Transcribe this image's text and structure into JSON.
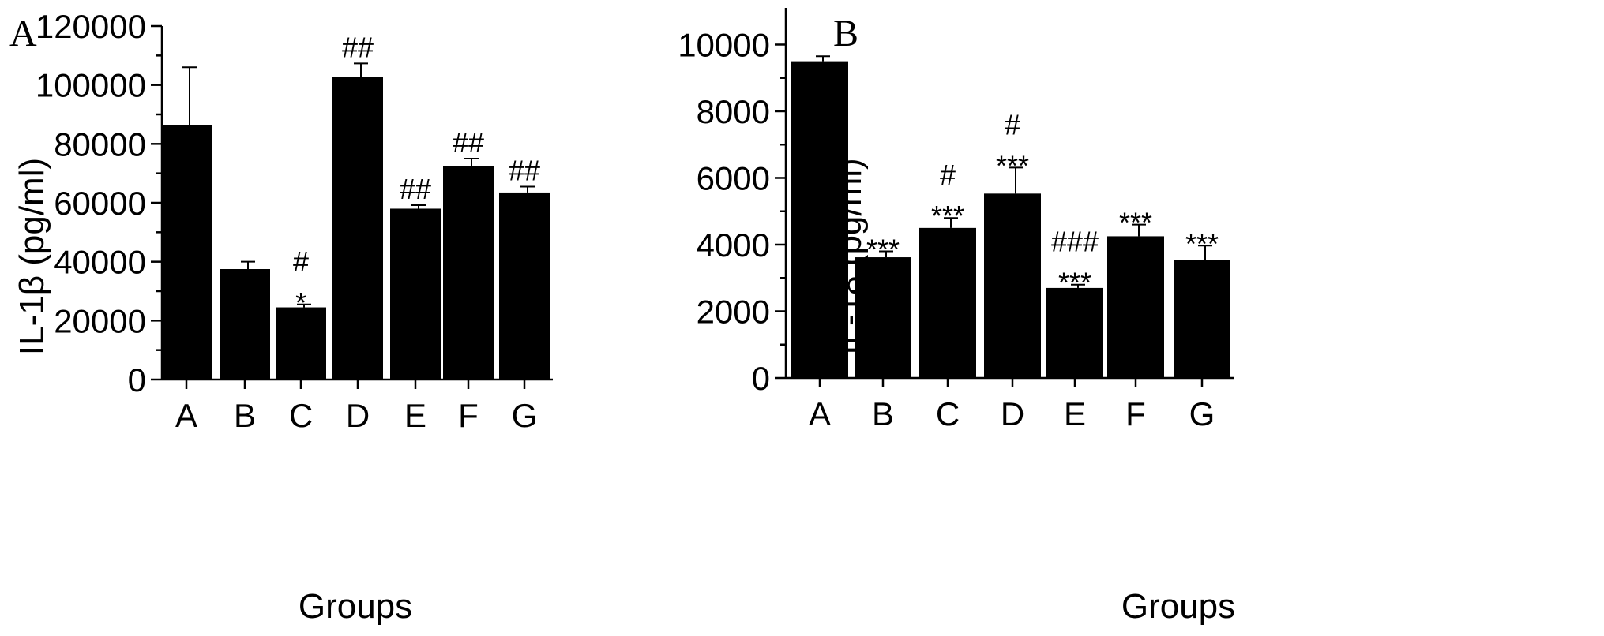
{
  "chart_data": [
    {
      "panel_label": "A",
      "type": "bar",
      "categories": [
        "A",
        "B",
        "C",
        "D",
        "E",
        "F",
        "G"
      ],
      "values": [
        86500,
        37500,
        24500,
        102800,
        58000,
        72500,
        63500
      ],
      "errors": [
        19500,
        2500,
        1000,
        4500,
        1200,
        2500,
        2000
      ],
      "annotations": [
        [],
        [],
        [
          "#",
          "*"
        ],
        [
          "##"
        ],
        [
          "##"
        ],
        [
          "##"
        ],
        [
          "##"
        ]
      ],
      "xlabel": "Groups",
      "ylabel": "IL-1β (pg/ml)",
      "ylim": [
        0,
        120000
      ],
      "yticks": [
        0,
        20000,
        40000,
        60000,
        80000,
        100000,
        120000
      ],
      "ytick_labels": [
        "0",
        "20000",
        "40000",
        "60000",
        "80000",
        "100000",
        "120000"
      ],
      "bar_color": "#000000",
      "grid": false
    },
    {
      "panel_label": "B",
      "type": "bar",
      "categories": [
        "A",
        "B",
        "C",
        "D",
        "E",
        "F",
        "G"
      ],
      "values": [
        9500,
        3620,
        4500,
        5530,
        2700,
        4250,
        3550
      ],
      "errors": [
        150,
        180,
        300,
        780,
        100,
        350,
        420
      ],
      "annotations": [
        [],
        [
          "***"
        ],
        [
          "#",
          "***"
        ],
        [
          "#",
          "***"
        ],
        [
          "###",
          "***"
        ],
        [
          "***"
        ],
        [
          "***"
        ]
      ],
      "xlabel": "Groups",
      "ylabel": "IL-18 (pg/ml)",
      "ylim": [
        0,
        11100
      ],
      "yticks": [
        0,
        2000,
        4000,
        6000,
        8000,
        10000
      ],
      "ytick_labels": [
        "0",
        "2000",
        "4000",
        "6000",
        "8000",
        "10000"
      ],
      "bar_color": "#000000",
      "grid": false
    }
  ]
}
